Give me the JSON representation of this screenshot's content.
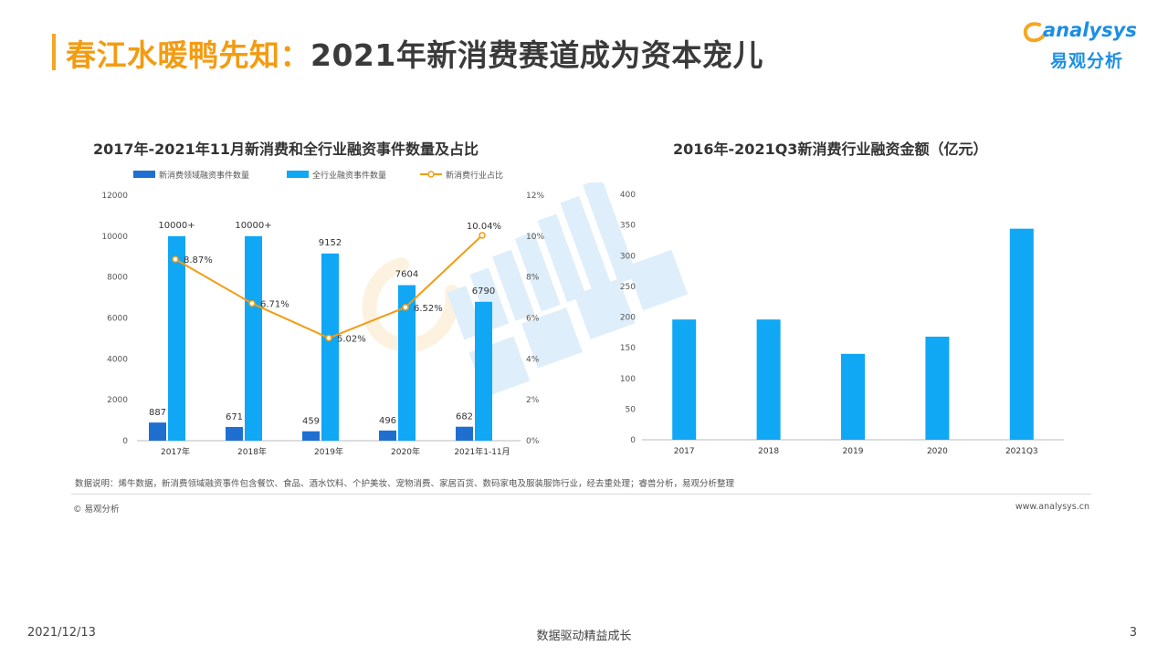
{
  "header": {
    "title_highlight": "春江水暖鸭先知：",
    "title_rest": "2021年新消费赛道成为资本宠儿"
  },
  "logo": {
    "en": "analysys",
    "cn": "易观分析"
  },
  "colors": {
    "dark_blue": "#1f6fd1",
    "light_blue": "#10a7f5",
    "orange": "#f39c12",
    "accent": "#f5a623"
  },
  "chart_data": [
    {
      "type": "bar",
      "title": "2017年-2021年11月新消费和全行业融资事件数量及占比",
      "categories": [
        "2017年",
        "2018年",
        "2019年",
        "2020年",
        "2021年1-11月"
      ],
      "ylim": [
        0,
        12000
      ],
      "yticks": [
        "0",
        "2000",
        "4000",
        "6000",
        "8000",
        "10000",
        "12000"
      ],
      "y2lim": [
        0,
        12
      ],
      "y2ticks": [
        "0%",
        "2%",
        "4%",
        "6%",
        "8%",
        "10%",
        "12%"
      ],
      "legend_position": "top-left",
      "series": [
        {
          "name": "新消费领域融资事件数量",
          "type": "bar",
          "color": "#1f6fd1",
          "values": [
            887,
            671,
            459,
            496,
            682
          ],
          "labels": [
            "887",
            "671",
            "459",
            "496",
            "682"
          ]
        },
        {
          "name": "全行业融资事件数量",
          "type": "bar",
          "color": "#10a7f5",
          "values": [
            10000,
            10000,
            9152,
            7604,
            6790
          ],
          "labels": [
            "10000+",
            "10000+",
            "9152",
            "7604",
            "6790"
          ]
        },
        {
          "name": "新消费行业占比",
          "type": "line",
          "axis": "secondary",
          "color": "#f39c12",
          "values": [
            8.87,
            6.71,
            5.02,
            6.52,
            10.04
          ],
          "labels": [
            "8.87%",
            "6.71%",
            "5.02%",
            "6.52%",
            "10.04%"
          ]
        }
      ]
    },
    {
      "type": "bar",
      "title": "2016年-2021Q3新消费行业融资金额（亿元）",
      "categories": [
        "2017",
        "2018",
        "2019",
        "2020",
        "2021Q3"
      ],
      "ylim": [
        0,
        400
      ],
      "yticks": [
        "0",
        "50",
        "100",
        "150",
        "200",
        "250",
        "300",
        "350",
        "400"
      ],
      "series": [
        {
          "color": "#10a7f5",
          "values": [
            196,
            196,
            140,
            168,
            344
          ]
        }
      ]
    }
  ],
  "notes": {
    "source": "数据说明：烯牛数据，新消费领域融资事件包含餐饮、食品、酒水饮料、个护美妆、宠物消费、家居百货、数码家电及服装服饰行业，经去重处理；睿兽分析，易观分析整理",
    "copyright": "© 易观分析",
    "website": "www.analysys.cn"
  },
  "footer": {
    "date": "2021/12/13",
    "slogan": "数据驱动精益成长",
    "page": "3"
  }
}
